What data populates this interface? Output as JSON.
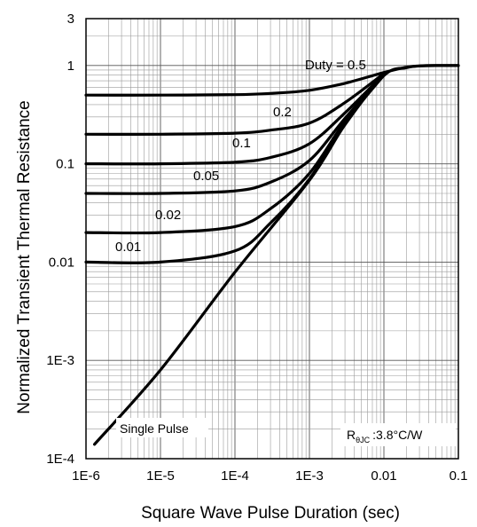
{
  "chart_data": {
    "type": "line",
    "title": "",
    "xlabel": "Square Wave Pulse Duration (sec)",
    "ylabel": "Normalized Transient Thermal Resistance",
    "xscale": "log",
    "yscale": "log",
    "xlim": [
      1e-06,
      0.1
    ],
    "ylim": [
      0.0001,
      3
    ],
    "grid": true,
    "x_ticks": [
      {
        "value": 1e-06,
        "label": "1E-6"
      },
      {
        "value": 1e-05,
        "label": "1E-5"
      },
      {
        "value": 0.0001,
        "label": "1E-4"
      },
      {
        "value": 0.001,
        "label": "1E-3"
      },
      {
        "value": 0.01,
        "label": "0.01"
      },
      {
        "value": 0.1,
        "label": "0.1"
      }
    ],
    "y_ticks": [
      {
        "value": 0.0001,
        "label": "1E-4"
      },
      {
        "value": 0.001,
        "label": "1E-3"
      },
      {
        "value": 0.01,
        "label": "0.01"
      },
      {
        "value": 0.1,
        "label": "0.1"
      },
      {
        "value": 1,
        "label": "1"
      },
      {
        "value": 3,
        "label": "3"
      }
    ],
    "series": [
      {
        "name": "Duty = 0.5",
        "duty": 0.5,
        "x": [
          1e-06,
          1e-05,
          0.0001,
          0.0003,
          0.001,
          0.003,
          0.01,
          0.02,
          0.03,
          0.05,
          0.1
        ],
        "y": [
          0.5,
          0.5,
          0.505,
          0.52,
          0.56,
          0.66,
          0.85,
          0.96,
          0.99,
          1.0,
          1.0
        ]
      },
      {
        "name": "0.2",
        "duty": 0.2,
        "x": [
          1e-06,
          1e-05,
          0.0001,
          0.0003,
          0.001,
          0.003,
          0.01
        ],
        "y": [
          0.2,
          0.2,
          0.205,
          0.22,
          0.26,
          0.42,
          0.83
        ]
      },
      {
        "name": "0.1",
        "duty": 0.1,
        "x": [
          1e-06,
          1e-05,
          0.0001,
          0.0003,
          0.001,
          0.003,
          0.01
        ],
        "y": [
          0.1,
          0.1,
          0.104,
          0.116,
          0.16,
          0.33,
          0.82
        ]
      },
      {
        "name": "0.05",
        "duty": 0.05,
        "x": [
          1e-06,
          1e-05,
          0.0001,
          0.0003,
          0.001,
          0.003,
          0.01
        ],
        "y": [
          0.05,
          0.05,
          0.053,
          0.065,
          0.108,
          0.29,
          0.81
        ]
      },
      {
        "name": "0.02",
        "duty": 0.02,
        "x": [
          1e-06,
          1e-05,
          0.0001,
          0.0003,
          0.001,
          0.003,
          0.01
        ],
        "y": [
          0.02,
          0.02,
          0.023,
          0.035,
          0.08,
          0.27,
          0.8
        ]
      },
      {
        "name": "0.01",
        "duty": 0.01,
        "x": [
          1e-06,
          1e-05,
          0.0001,
          0.0003,
          0.001,
          0.003,
          0.01
        ],
        "y": [
          0.01,
          0.01,
          0.013,
          0.025,
          0.07,
          0.26,
          0.8
        ]
      },
      {
        "name": "Single Pulse",
        "duty": 0,
        "x": [
          1.3e-06,
          1e-05,
          0.0001,
          0.001,
          0.003,
          0.01,
          0.02,
          0.03,
          0.05,
          0.1
        ],
        "y": [
          0.00014,
          0.0008,
          0.0079,
          0.068,
          0.25,
          0.79,
          0.95,
          0.99,
          1.0,
          1.0
        ]
      }
    ],
    "annotations": {
      "duty_labels": [
        "Duty = 0.5",
        "0.2",
        "0.1",
        "0.05",
        "0.02",
        "0.01"
      ],
      "single_pulse": "Single Pulse",
      "rthjc_symbol": "R",
      "rthjc_subscript": "θJC",
      "rthjc_value": ":3.8°C/W"
    }
  }
}
